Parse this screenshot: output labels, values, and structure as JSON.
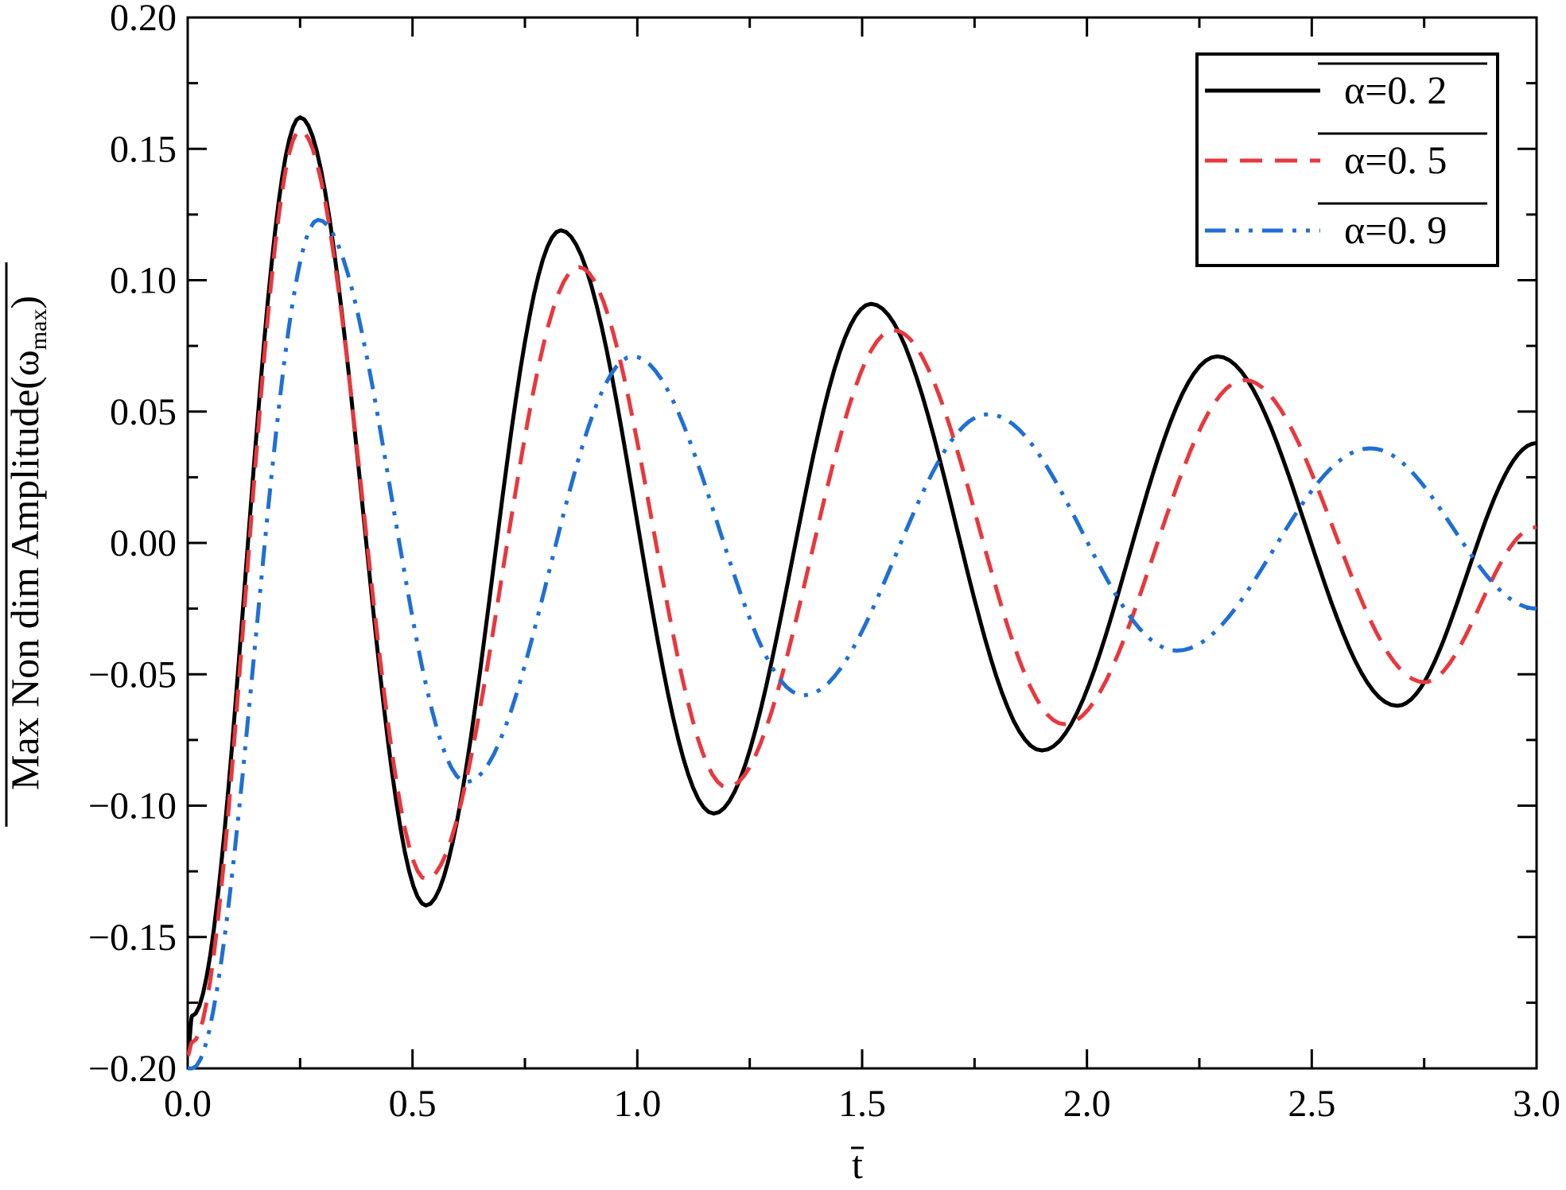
{
  "chart_data": {
    "type": "line",
    "title": "",
    "xlabel": "t",
    "ylabel": "Max Non dim Amplitude(ω",
    "ylabel_sub": "max",
    "ylabel_close": ")",
    "xlim": [
      0,
      3.0
    ],
    "ylim": [
      -0.2,
      0.2
    ],
    "x_ticks": [
      0.0,
      0.5,
      1.0,
      1.5,
      2.0,
      2.5,
      3.0
    ],
    "x_tick_labels": [
      "0.0",
      "0.5",
      "1.0",
      "1.5",
      "2.0",
      "2.5",
      "3.0"
    ],
    "y_ticks": [
      -0.2,
      -0.15,
      -0.1,
      -0.05,
      0.0,
      0.05,
      0.1,
      0.15,
      0.2
    ],
    "y_tick_labels": [
      "−0.20",
      "−0.15",
      "−0.10",
      "−0.05",
      "0.00",
      "0.05",
      "0.10",
      "0.15",
      "0.20"
    ],
    "grid": false,
    "legend_position": "top-right",
    "series": [
      {
        "name": "α=0. 2",
        "color": "#000000",
        "style": "solid",
        "x": [
          0,
          0.01,
          0.25,
          0.53,
          0.83,
          1.17,
          1.52,
          1.9,
          2.29,
          2.69,
          3.0
        ],
        "y": [
          -0.195,
          -0.18,
          0.162,
          -0.138,
          0.119,
          -0.103,
          0.091,
          -0.079,
          0.071,
          -0.062,
          0.038
        ]
      },
      {
        "name": "α=0. 5",
        "color": "#e8383d",
        "style": "dashed",
        "x": [
          0,
          0.01,
          0.25,
          0.53,
          0.87,
          1.2,
          1.57,
          1.95,
          2.35,
          2.75,
          3.0
        ],
        "y": [
          -0.195,
          -0.19,
          0.157,
          -0.128,
          0.105,
          -0.093,
          0.081,
          -0.069,
          0.062,
          -0.053,
          0.006
        ]
      },
      {
        "name": "α=0. 9",
        "color": "#1f6fd6",
        "style": "dash-dot-dot",
        "x": [
          0,
          0.01,
          0.29,
          0.62,
          0.99,
          1.37,
          1.78,
          2.2,
          2.63,
          3.0
        ],
        "y": [
          -0.2,
          -0.2,
          0.123,
          -0.091,
          0.071,
          -0.058,
          0.049,
          -0.041,
          0.036,
          -0.025
        ]
      }
    ]
  }
}
